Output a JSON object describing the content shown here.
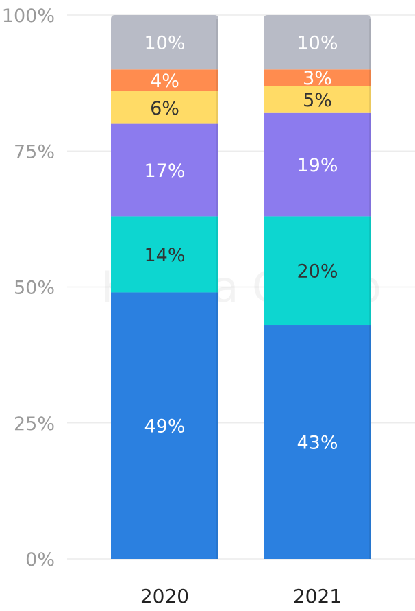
{
  "watermark": "Kolesa Group",
  "chart_data": {
    "type": "bar",
    "stacked": true,
    "categories": [
      "2020",
      "2021"
    ],
    "ylim": [
      0,
      100
    ],
    "yticks": [
      "0%",
      "25%",
      "50%",
      "75%",
      "100%"
    ],
    "ytick_values": [
      0,
      25,
      50,
      75,
      100
    ],
    "grid": true,
    "series": [
      {
        "color": "#2b80e0",
        "values": [
          49,
          43
        ],
        "labels": [
          "49%",
          "43%"
        ],
        "label_color": "#ffffff"
      },
      {
        "color": "#0dd6d0",
        "values": [
          14,
          20
        ],
        "labels": [
          "14%",
          "20%"
        ],
        "label_color": "#333333"
      },
      {
        "color": "#8c7bee",
        "values": [
          17,
          19
        ],
        "labels": [
          "17%",
          "19%"
        ],
        "label_color": "#ffffff"
      },
      {
        "color": "#ffdb66",
        "values": [
          6,
          5
        ],
        "labels": [
          "6%",
          "5%"
        ],
        "label_color": "#333333"
      },
      {
        "color": "#ff8c4f",
        "values": [
          4,
          3
        ],
        "labels": [
          "4%",
          "3%"
        ],
        "label_color": "#ffffff"
      },
      {
        "color": "#b8bbc6",
        "values": [
          10,
          10
        ],
        "labels": [
          "10%",
          "10%"
        ],
        "label_color": "#ffffff"
      }
    ]
  }
}
